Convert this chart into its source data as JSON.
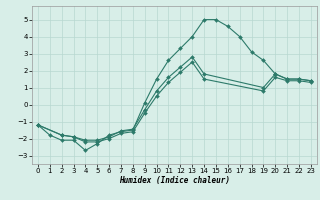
{
  "xlabel": "Humidex (Indice chaleur)",
  "background_color": "#d8eee8",
  "grid_color": "#b8d8d0",
  "line_color": "#2d7a6a",
  "xlim": [
    -0.5,
    23.5
  ],
  "ylim": [
    -3.5,
    5.8
  ],
  "xticks": [
    0,
    1,
    2,
    3,
    4,
    5,
    6,
    7,
    8,
    9,
    10,
    11,
    12,
    13,
    14,
    15,
    16,
    17,
    18,
    19,
    20,
    21,
    22,
    23
  ],
  "yticks": [
    -3,
    -2,
    -1,
    0,
    1,
    2,
    3,
    4,
    5
  ],
  "series": [
    {
      "x": [
        0,
        1,
        2,
        3,
        4,
        5,
        6,
        7,
        8,
        9,
        10,
        11,
        12,
        13,
        14,
        15,
        16,
        17,
        18,
        19,
        20,
        21,
        22,
        23
      ],
      "y": [
        -1.2,
        -1.8,
        -2.1,
        -2.1,
        -2.7,
        -2.3,
        -1.8,
        -1.6,
        -1.5,
        0.1,
        1.5,
        2.6,
        3.3,
        4.0,
        5.0,
        5.0,
        4.6,
        4.0,
        3.1,
        2.6,
        1.8,
        1.5,
        1.5,
        1.4
      ],
      "marker": true
    },
    {
      "x": [
        0,
        2,
        3,
        4,
        5,
        6,
        7,
        8,
        9,
        10,
        11,
        12,
        13,
        14,
        19,
        20,
        21,
        22,
        23
      ],
      "y": [
        -1.2,
        -1.8,
        -1.9,
        -2.1,
        -2.1,
        -1.9,
        -1.55,
        -1.45,
        -0.3,
        0.8,
        1.6,
        2.2,
        2.8,
        1.8,
        1.0,
        1.8,
        1.5,
        1.5,
        1.4
      ],
      "marker": true
    },
    {
      "x": [
        0,
        2,
        3,
        4,
        5,
        6,
        7,
        8,
        9,
        10,
        11,
        12,
        13,
        14,
        19,
        20,
        21,
        22,
        23
      ],
      "y": [
        -1.2,
        -1.8,
        -1.9,
        -2.2,
        -2.2,
        -2.0,
        -1.7,
        -1.6,
        -0.5,
        0.5,
        1.3,
        1.9,
        2.5,
        1.5,
        0.8,
        1.6,
        1.4,
        1.4,
        1.3
      ],
      "marker": true
    }
  ]
}
